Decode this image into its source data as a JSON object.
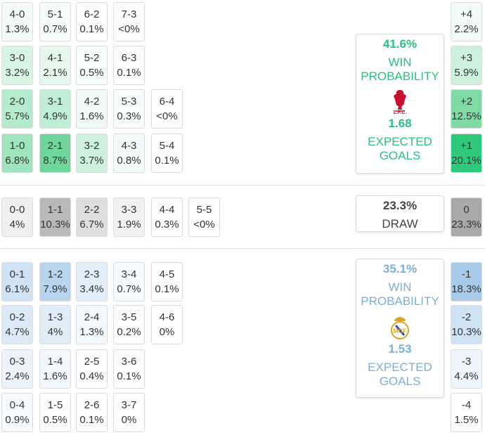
{
  "home": {
    "win_pct": "41.6%",
    "win_label": "WIN PROBABILITY",
    "xg": "1.68",
    "xg_label": "EXPECTED GOALS",
    "crest_text": "L.F.C.",
    "rows": [
      [
        [
          "4-0",
          "1.3%"
        ],
        [
          "5-1",
          "0.7%"
        ],
        [
          "6-2",
          "0.1%"
        ],
        [
          "7-3",
          "<0%"
        ]
      ],
      [
        [
          "3-0",
          "3.2%"
        ],
        [
          "4-1",
          "2.1%"
        ],
        [
          "5-2",
          "0.5%"
        ],
        [
          "6-3",
          "0.1%"
        ]
      ],
      [
        [
          "2-0",
          "5.7%"
        ],
        [
          "3-1",
          "4.9%"
        ],
        [
          "4-2",
          "1.6%"
        ],
        [
          "5-3",
          "0.3%"
        ],
        [
          "6-4",
          "<0%"
        ]
      ],
      [
        [
          "1-0",
          "6.8%"
        ],
        [
          "2-1",
          "8.7%"
        ],
        [
          "3-2",
          "3.7%"
        ],
        [
          "4-3",
          "0.8%"
        ],
        [
          "5-4",
          "0.1%"
        ]
      ]
    ],
    "margins": [
      [
        "+4",
        "2.2%"
      ],
      [
        "+3",
        "5.9%"
      ],
      [
        "+2",
        "12.5%"
      ],
      [
        "+1",
        "20.1%"
      ]
    ]
  },
  "draw": {
    "pct": "23.3%",
    "label": "DRAW",
    "row": [
      [
        "0-0",
        "4%"
      ],
      [
        "1-1",
        "10.3%"
      ],
      [
        "2-2",
        "6.7%"
      ],
      [
        "3-3",
        "1.9%"
      ],
      [
        "4-4",
        "0.3%"
      ],
      [
        "5-5",
        "<0%"
      ]
    ],
    "margin": [
      "0",
      "23.3%"
    ]
  },
  "away": {
    "win_pct": "35.1%",
    "win_label": "WIN PROBABILITY",
    "xg": "1.53",
    "xg_label": "EXPECTED GOALS",
    "rows": [
      [
        [
          "0-1",
          "6.1%"
        ],
        [
          "1-2",
          "7.9%"
        ],
        [
          "2-3",
          "3.4%"
        ],
        [
          "3-4",
          "0.7%"
        ],
        [
          "4-5",
          "0.1%"
        ]
      ],
      [
        [
          "0-2",
          "4.7%"
        ],
        [
          "1-3",
          "4%"
        ],
        [
          "2-4",
          "1.3%"
        ],
        [
          "3-5",
          "0.2%"
        ],
        [
          "4-6",
          "0%"
        ]
      ],
      [
        [
          "0-3",
          "2.4%"
        ],
        [
          "1-4",
          "1.6%"
        ],
        [
          "2-5",
          "0.4%"
        ],
        [
          "3-6",
          "0.1%"
        ]
      ],
      [
        [
          "0-4",
          "0.9%"
        ],
        [
          "1-5",
          "0.5%"
        ],
        [
          "2-6",
          "0.1%"
        ],
        [
          "3-7",
          "0%"
        ]
      ]
    ],
    "margins": [
      [
        "-1",
        "18.3%"
      ],
      [
        "-2",
        "10.3%"
      ],
      [
        "-3",
        "4.4%"
      ],
      [
        "-4",
        "1.5%"
      ]
    ]
  },
  "colors": {
    "home_accent": "#27c281",
    "away_accent": "#7daed6",
    "draw_accent": "#444444"
  }
}
